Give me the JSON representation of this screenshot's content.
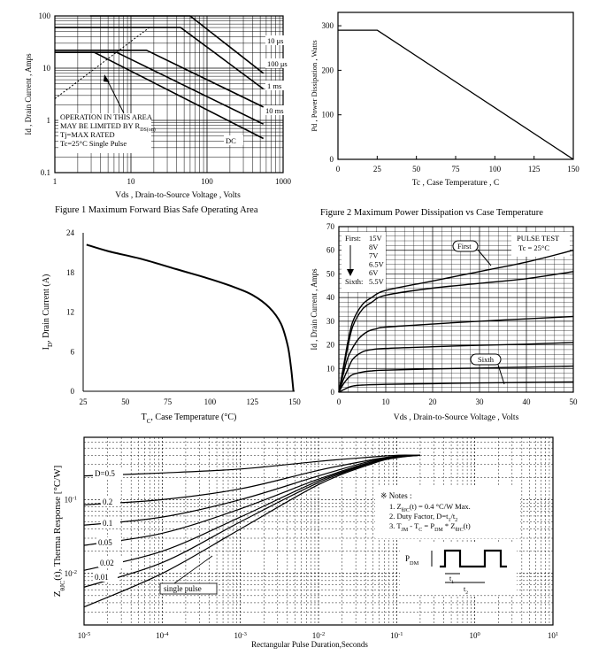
{
  "captions": {
    "fig1": "Figure    1    Maximum Forward Bias Safe Operating Area",
    "fig2": "Figure    2    Maximum Power Dissipation vs Case Temperature"
  },
  "chart_data": [
    {
      "id": "soa",
      "type": "line",
      "title": "",
      "xlabel": "Vds , Drain-to-Source Voltage , Volts",
      "ylabel": "Id , Drain Current , Amps",
      "xscale": "log",
      "yscale": "log",
      "xlim": [
        1,
        1000
      ],
      "ylim": [
        0.1,
        100
      ],
      "x_ticks": [
        "1",
        "10",
        "100",
        "1000"
      ],
      "y_ticks": [
        "0.1",
        "1",
        "10",
        "100"
      ],
      "grid": true,
      "series": [
        {
          "name": "10 μs",
          "x": [
            2.9,
            60,
            550
          ],
          "y": [
            100,
            100,
            8
          ]
        },
        {
          "name": "100 μs",
          "x": [
            1,
            45,
            550
          ],
          "y": [
            60,
            60,
            4
          ]
        },
        {
          "name": "1 ms",
          "x": [
            1,
            16,
            550
          ],
          "y": [
            22,
            22,
            1.8
          ]
        },
        {
          "name": "10 ms",
          "x": [
            1,
            6.5,
            550
          ],
          "y": [
            20,
            20,
            0.85
          ]
        },
        {
          "name": "DC",
          "x": [
            1,
            3.3,
            550
          ],
          "y": [
            20,
            20,
            0.45
          ]
        },
        {
          "name": "RDS(on) limit",
          "x": [
            1,
            18
          ],
          "y": [
            2.6,
            62
          ]
        }
      ],
      "annotation_lines": [
        "OPERATION IN THIS AREA",
        "MAY BE LIMITED BY R",
        "Tj=MAX RATED",
        "Tc=25°C  Single Pulse"
      ],
      "annotation_sub": "DS(on)"
    },
    {
      "id": "power",
      "type": "line",
      "title": "",
      "xlabel": "Tc , Case Temperature , C",
      "ylabel": "Pd , Power Dissipation , Watts",
      "xlim": [
        0,
        150
      ],
      "ylim": [
        0,
        330
      ],
      "x_ticks": [
        "0",
        "25",
        "50",
        "75",
        "100",
        "125",
        "150"
      ],
      "y_ticks": [
        "0",
        "100",
        "200",
        "300"
      ],
      "grid": false,
      "series": [
        {
          "name": "",
          "x": [
            0,
            25,
            150
          ],
          "y": [
            290,
            290,
            0
          ]
        }
      ]
    },
    {
      "id": "derate",
      "type": "line",
      "title": "",
      "xlabel": "T",
      "xlabel_sub": "C",
      "xlabel_rest": ", Case Temperature (°C)",
      "ylabel": "I",
      "ylabel_sub": "D",
      "ylabel_rest": ", Drain Current (A)",
      "xlim": [
        25,
        150
      ],
      "ylim": [
        0,
        24
      ],
      "x_ticks": [
        "25",
        "50",
        "75",
        "100",
        "125",
        "150"
      ],
      "y_ticks": [
        "0",
        "6",
        "12",
        "18",
        "24"
      ],
      "grid": false,
      "series": [
        {
          "name": "",
          "x": [
            27,
            40,
            60,
            80,
            100,
            115,
            125,
            135,
            142,
            146,
            148,
            149.3
          ],
          "y": [
            22.2,
            21.2,
            20.0,
            18.5,
            17.0,
            15.7,
            14.6,
            12.7,
            10.2,
            6.8,
            3.3,
            0
          ]
        }
      ]
    },
    {
      "id": "output",
      "type": "line",
      "title": "",
      "xlabel": "Vds , Drain-to-Source Voltage , Volts",
      "ylabel": "Id , Drain Current , Amps",
      "xlim": [
        0,
        50
      ],
      "ylim": [
        0,
        70
      ],
      "x_ticks": [
        "0",
        "10",
        "20",
        "30",
        "40",
        "50"
      ],
      "y_ticks": [
        "0",
        "10",
        "20",
        "30",
        "40",
        "50",
        "60",
        "70"
      ],
      "grid": true,
      "legend_title": "First:",
      "legend_entries": [
        "15V",
        "8V",
        "7V",
        "6.5V",
        "6V",
        "5.5V"
      ],
      "legend_last_label": "Sixth:",
      "test_label": "PULSE    TEST",
      "tc_label": "Tc = 25°C",
      "callouts": [
        "First",
        "Sixth"
      ],
      "series": [
        {
          "name": "15V",
          "x": [
            0,
            1,
            2,
            3,
            5,
            7,
            10,
            20,
            30,
            40,
            50
          ],
          "y": [
            0,
            11,
            22,
            30,
            37,
            40,
            43,
            47,
            51,
            55,
            60
          ]
        },
        {
          "name": "8V",
          "x": [
            0,
            1,
            2,
            3,
            5,
            7,
            10,
            20,
            30,
            40,
            50
          ],
          "y": [
            0,
            10,
            20,
            28,
            35,
            38,
            41,
            44,
            46,
            48,
            51
          ]
        },
        {
          "name": "7V",
          "x": [
            0,
            1,
            2,
            4,
            6,
            8,
            10,
            20,
            30,
            40,
            50
          ],
          "y": [
            0,
            8,
            15,
            22,
            25.5,
            26.8,
            27.5,
            28.8,
            30,
            31,
            32
          ]
        },
        {
          "name": "6.5V",
          "x": [
            0,
            1,
            2,
            3,
            5,
            7,
            10,
            20,
            30,
            40,
            50
          ],
          "y": [
            0,
            5.5,
            10,
            14,
            17,
            18,
            18.5,
            19.2,
            19.8,
            20.3,
            21
          ]
        },
        {
          "name": "6V",
          "x": [
            0,
            1,
            2,
            3,
            5,
            7,
            10,
            20,
            30,
            40,
            50
          ],
          "y": [
            0,
            3.5,
            6,
            7.5,
            8.5,
            9,
            9.3,
            9.8,
            10.2,
            10.6,
            11
          ]
        },
        {
          "name": "5.5V",
          "x": [
            0,
            1,
            2,
            3,
            5,
            10,
            20,
            30,
            40,
            50
          ],
          "y": [
            0,
            1,
            2,
            2.6,
            3,
            3.3,
            3.6,
            3.9,
            4.1,
            4.3
          ]
        }
      ]
    },
    {
      "id": "thermal",
      "type": "line",
      "title": "",
      "xlabel": "Rectangular Pulse Duration,Seconds",
      "ylabel": "Z",
      "ylabel_sub": "θJC",
      "ylabel_rest": "(t), Therma Response [°C/W]",
      "xscale": "log",
      "yscale": "log",
      "xlim": [
        1e-05,
        10
      ],
      "ylim": [
        0.002,
        0.7
      ],
      "x_ticks": [
        "10",
        "10",
        "10",
        "10",
        "10",
        "10",
        "10"
      ],
      "x_tick_exps": [
        "-5",
        "-4",
        "-3",
        "-2",
        "-1",
        "0",
        "1"
      ],
      "y_ticks": [
        "10",
        "10"
      ],
      "y_tick_exps": [
        "-1",
        "-2"
      ],
      "grid": true,
      "notes_title": "※ Notes :",
      "notes": [
        "1. Z",
        "2. Duty Factor, D=t",
        "3. T"
      ],
      "notes_rest": [
        "(t) = 0.4 °C/W Max.",
        "",
        ""
      ],
      "pulse_label": "P",
      "pulse_sub": "DM",
      "t1_label": "t",
      "t2_label": "t",
      "series": [
        {
          "name": "D=0.5",
          "x": [
            1e-05,
            0.0001,
            0.001,
            0.01,
            0.05,
            0.1,
            0.2
          ],
          "y": [
            0.21,
            0.23,
            0.26,
            0.33,
            0.38,
            0.4,
            0.4
          ]
        },
        {
          "name": "0.2",
          "x": [
            1e-05,
            0.0001,
            0.001,
            0.01,
            0.05,
            0.1,
            0.2
          ],
          "y": [
            0.085,
            0.1,
            0.14,
            0.25,
            0.35,
            0.39,
            0.4
          ]
        },
        {
          "name": "0.1",
          "x": [
            1e-05,
            0.0001,
            0.001,
            0.01,
            0.05,
            0.1,
            0.2
          ],
          "y": [
            0.045,
            0.058,
            0.1,
            0.21,
            0.34,
            0.38,
            0.4
          ]
        },
        {
          "name": "0.05",
          "x": [
            1e-05,
            0.0001,
            0.001,
            0.01,
            0.05,
            0.1,
            0.2
          ],
          "y": [
            0.024,
            0.035,
            0.075,
            0.19,
            0.33,
            0.38,
            0.4
          ]
        },
        {
          "name": "0.02",
          "x": [
            1e-05,
            0.0001,
            0.001,
            0.01,
            0.05,
            0.1,
            0.2
          ],
          "y": [
            0.011,
            0.02,
            0.058,
            0.18,
            0.32,
            0.38,
            0.4
          ]
        },
        {
          "name": "0.01",
          "x": [
            1e-05,
            0.0001,
            0.001,
            0.01,
            0.05,
            0.1,
            0.2
          ],
          "y": [
            0.0065,
            0.014,
            0.05,
            0.17,
            0.32,
            0.38,
            0.4
          ]
        },
        {
          "name": "single pulse",
          "x": [
            1e-05,
            0.0001,
            0.001,
            0.01,
            0.05,
            0.1,
            0.2
          ],
          "y": [
            0.0035,
            0.01,
            0.04,
            0.16,
            0.31,
            0.37,
            0.4
          ]
        }
      ]
    }
  ]
}
